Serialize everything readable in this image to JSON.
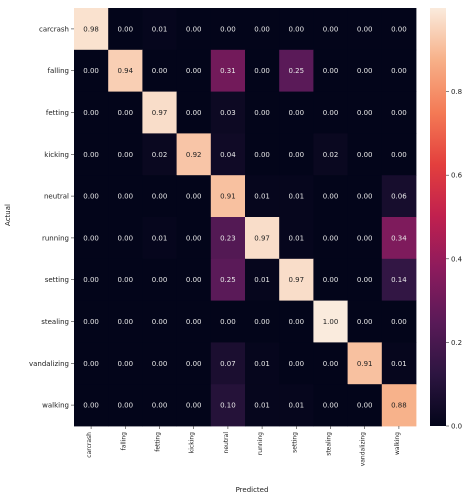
{
  "chart_data": {
    "type": "heatmap",
    "xlabel": "Predicted",
    "ylabel": "Actual",
    "row_labels": [
      "carcrash",
      "falling",
      "fetting",
      "kicking",
      "neutral",
      "running",
      "setting",
      "stealing",
      "vandalizing",
      "walking"
    ],
    "col_labels": [
      "carcrash",
      "falling",
      "fetting",
      "kicking",
      "neutral",
      "running",
      "setting",
      "stealing",
      "vandalizing",
      "walking"
    ],
    "values": [
      [
        0.98,
        0.0,
        0.01,
        0.0,
        0.0,
        0.0,
        0.0,
        0.0,
        0.0,
        0.0
      ],
      [
        0.0,
        0.94,
        0.0,
        0.0,
        0.31,
        0.0,
        0.25,
        0.0,
        0.0,
        0.0
      ],
      [
        0.0,
        0.0,
        0.97,
        0.0,
        0.03,
        0.0,
        0.0,
        0.0,
        0.0,
        0.0
      ],
      [
        0.0,
        0.0,
        0.02,
        0.92,
        0.04,
        0.0,
        0.0,
        0.02,
        0.0,
        0.0
      ],
      [
        0.0,
        0.0,
        0.0,
        0.0,
        0.91,
        0.01,
        0.01,
        0.0,
        0.0,
        0.06
      ],
      [
        0.0,
        0.0,
        0.01,
        0.0,
        0.23,
        0.97,
        0.01,
        0.0,
        0.0,
        0.34
      ],
      [
        0.0,
        0.0,
        0.0,
        0.0,
        0.25,
        0.01,
        0.97,
        0.0,
        0.0,
        0.14
      ],
      [
        0.0,
        0.0,
        0.0,
        0.0,
        0.0,
        0.0,
        0.0,
        1.0,
        0.0,
        0.0
      ],
      [
        0.0,
        0.0,
        0.0,
        0.0,
        0.07,
        0.01,
        0.0,
        0.0,
        0.91,
        0.01
      ],
      [
        0.0,
        0.0,
        0.0,
        0.0,
        0.1,
        0.01,
        0.01,
        0.0,
        0.0,
        0.88
      ]
    ],
    "colorbar": {
      "range": [
        0.0,
        1.0
      ],
      "ticks": [
        0.0,
        0.2,
        0.4,
        0.6,
        0.8
      ],
      "tick_labels": [
        "0.0",
        "0.2",
        "0.4",
        "0.6",
        "0.8"
      ],
      "colormap": "rocket"
    }
  }
}
